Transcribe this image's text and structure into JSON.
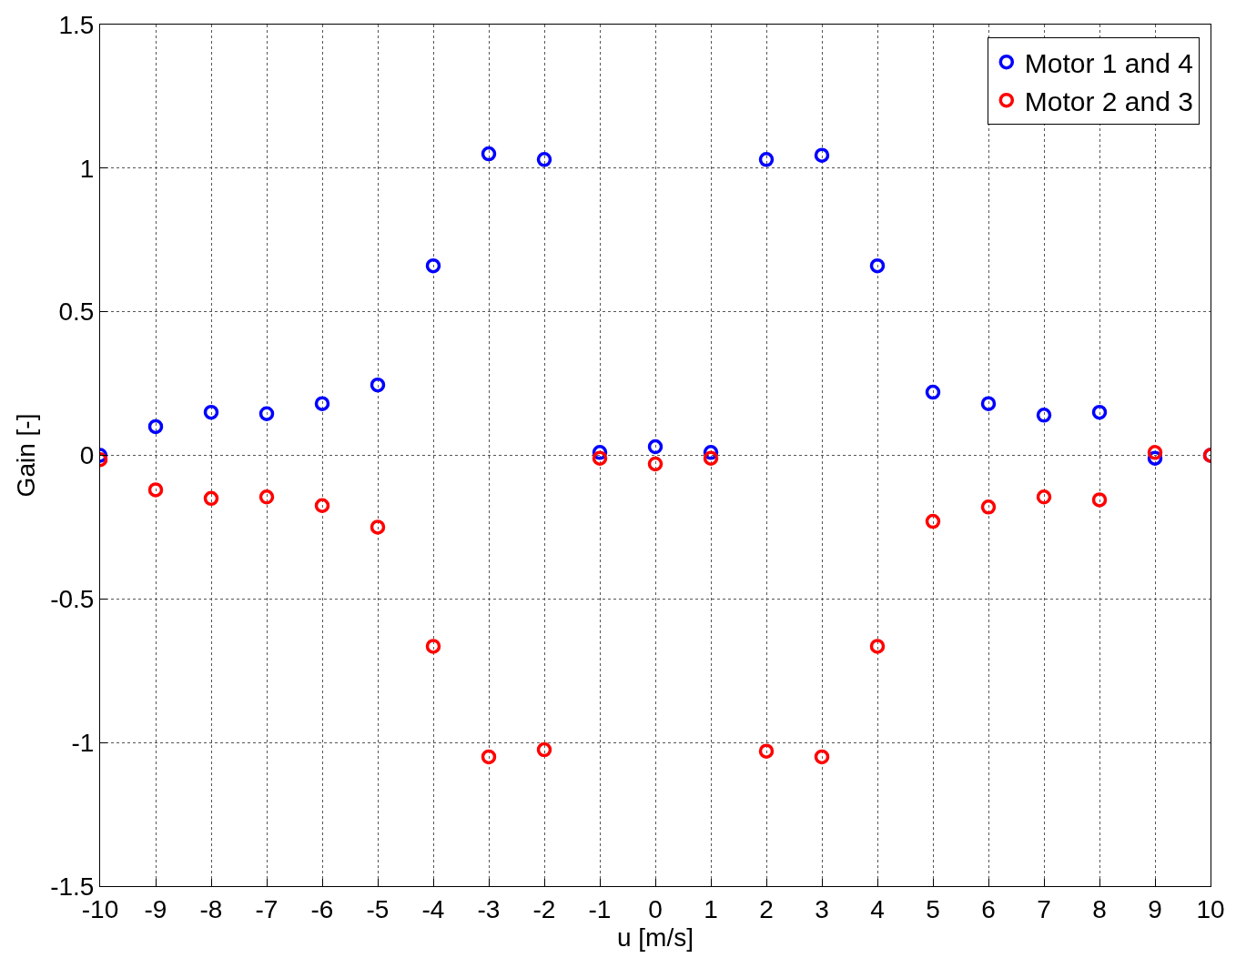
{
  "chart_data": {
    "type": "scatter",
    "xlabel": "u [m/s]",
    "ylabel": "Gain [-]",
    "x": [
      -10,
      -9,
      -8,
      -7,
      -6,
      -5,
      -4,
      -3,
      -2,
      -1,
      0,
      1,
      2,
      3,
      4,
      5,
      6,
      7,
      8,
      9,
      10
    ],
    "series": [
      {
        "name": "Motor 1 and 4",
        "color": "#0000ff",
        "values": [
          0.0,
          0.1,
          0.15,
          0.145,
          0.18,
          0.245,
          0.66,
          1.05,
          1.03,
          0.01,
          0.03,
          0.01,
          1.03,
          1.045,
          0.66,
          0.22,
          0.18,
          0.14,
          0.15,
          -0.01,
          0.0
        ]
      },
      {
        "name": "Motor 2 and 3",
        "color": "#ff0000",
        "values": [
          -0.015,
          -0.12,
          -0.15,
          -0.145,
          -0.175,
          -0.25,
          -0.665,
          -1.05,
          -1.025,
          -0.01,
          -0.03,
          -0.01,
          -1.03,
          -1.05,
          -0.665,
          -0.23,
          -0.18,
          -0.145,
          -0.155,
          0.01,
          0.0
        ]
      }
    ],
    "xlim": [
      -10,
      10
    ],
    "xticks": [
      -10,
      -9,
      -8,
      -7,
      -6,
      -5,
      -4,
      -3,
      -2,
      -1,
      0,
      1,
      2,
      3,
      4,
      5,
      6,
      7,
      8,
      9,
      10
    ],
    "ylim": [
      -1.5,
      1.5
    ],
    "yticks": [
      -1.5,
      -1,
      -0.5,
      0,
      0.5,
      1,
      1.5
    ],
    "grid": true,
    "legend": "top right",
    "marker": "circle"
  }
}
